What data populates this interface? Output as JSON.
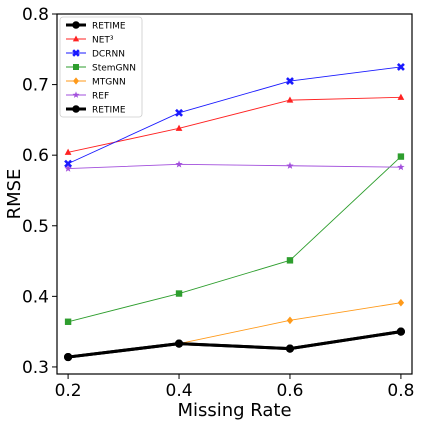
{
  "chart_data": {
    "type": "line",
    "xlabel": "Missing Rate",
    "ylabel": "RMSE",
    "x": [
      0.2,
      0.4,
      0.6,
      0.8
    ],
    "x_ticks": [
      "0.2",
      "0.4",
      "0.6",
      "0.8"
    ],
    "xlim": [
      0.18,
      0.82
    ],
    "ylim": [
      0.29,
      0.8
    ],
    "y_ticks": [
      "0.3",
      "0.4",
      "0.5",
      "0.6",
      "0.7",
      "0.8"
    ],
    "grid": false,
    "legend_placement": "top-left",
    "series": [
      {
        "name": "RETIME",
        "color": "#000000",
        "marker": "circle",
        "bold": true,
        "values": [
          0.314,
          0.333,
          0.326,
          0.35
        ]
      },
      {
        "name": "NET³",
        "color": "#ff2222",
        "marker": "triangle",
        "bold": false,
        "values": [
          0.604,
          0.638,
          0.678,
          0.682
        ]
      },
      {
        "name": "DCRNN",
        "color": "#1a1aff",
        "marker": "x",
        "bold": false,
        "values": [
          0.588,
          0.66,
          0.705,
          0.725
        ]
      },
      {
        "name": "StemGNN",
        "color": "#2e9e2e",
        "marker": "square",
        "bold": false,
        "values": [
          0.364,
          0.404,
          0.451,
          0.598
        ]
      },
      {
        "name": "MTGNN",
        "color": "#ff9a1a",
        "marker": "diamond",
        "bold": false,
        "values": [
          0.314,
          0.333,
          0.366,
          0.391
        ]
      },
      {
        "name": "REF",
        "color": "#a24fdc",
        "marker": "star",
        "bold": false,
        "values": [
          0.581,
          0.587,
          0.585,
          0.583
        ]
      },
      {
        "name": "RETIME",
        "color": "#000000",
        "marker": "circle",
        "bold": true,
        "values": [
          0.314,
          0.333,
          0.326,
          0.35
        ]
      }
    ]
  }
}
